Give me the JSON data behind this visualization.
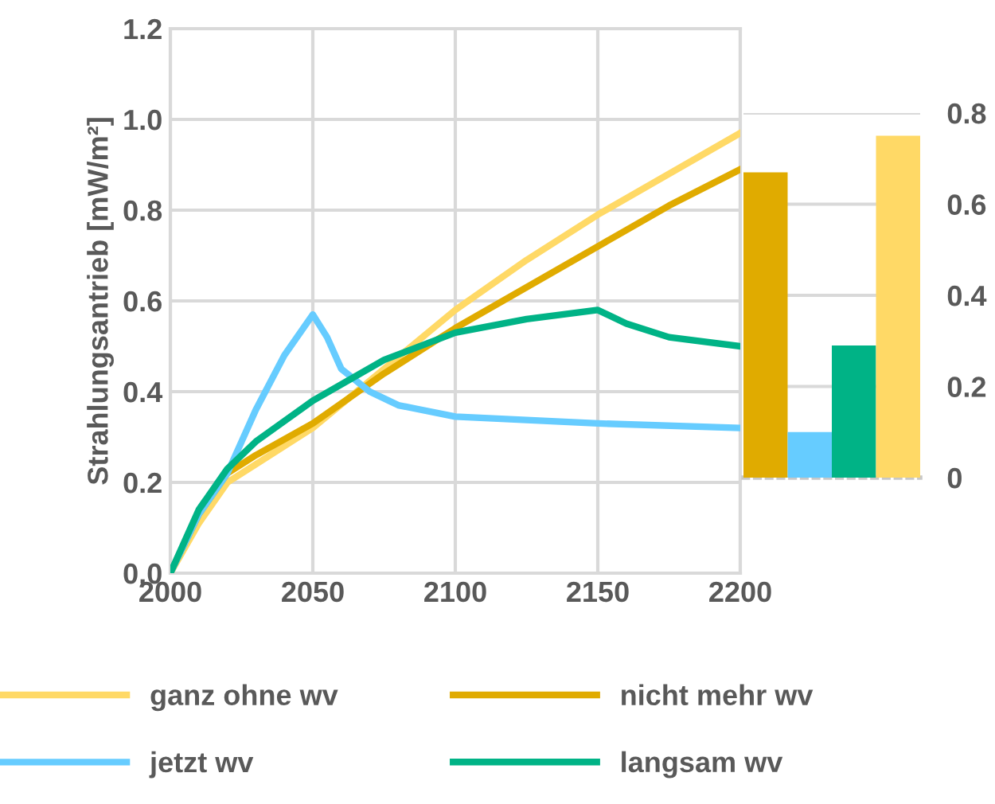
{
  "chart_data": [
    {
      "type": "line",
      "ylabel": "Strahlungsantrieb [mW/m²]",
      "xlim": [
        2000,
        2200
      ],
      "xticks": [
        2000,
        2050,
        2100,
        2150,
        2200
      ],
      "ylim": [
        0,
        1.2
      ],
      "yticks": [
        {
          "value": 0,
          "label": "0.0"
        },
        {
          "value": 0.2,
          "label": "0.2"
        },
        {
          "value": 0.4,
          "label": "0.4"
        },
        {
          "value": 0.6,
          "label": "0.6"
        },
        {
          "value": 0.8,
          "label": "0.8"
        },
        {
          "value": 1.0,
          "label": "1.0"
        },
        {
          "value": 1.2,
          "label": "1.2"
        }
      ],
      "grid": true,
      "legend": "bottom",
      "marker": "none",
      "line_style": "solid",
      "series": [
        {
          "name": "ganz ohne wv",
          "color": "#ffd966",
          "x": [
            2000,
            2010,
            2020,
            2030,
            2050,
            2075,
            2100,
            2125,
            2150,
            2175,
            2200
          ],
          "values": [
            0,
            0.11,
            0.2,
            0.24,
            0.32,
            0.45,
            0.58,
            0.69,
            0.79,
            0.88,
            0.97
          ]
        },
        {
          "name": "nicht mehr wv",
          "color": "#e0ab00",
          "x": [
            2000,
            2010,
            2020,
            2030,
            2050,
            2075,
            2100,
            2125,
            2150,
            2175,
            2200
          ],
          "values": [
            0,
            0.13,
            0.22,
            0.26,
            0.33,
            0.44,
            0.54,
            0.63,
            0.72,
            0.81,
            0.89
          ]
        },
        {
          "name": "jetzt wv",
          "color": "#66ccff",
          "x": [
            2000,
            2010,
            2020,
            2030,
            2040,
            2050,
            2055,
            2060,
            2070,
            2080,
            2100,
            2150,
            2200
          ],
          "values": [
            0,
            0.13,
            0.22,
            0.36,
            0.48,
            0.57,
            0.52,
            0.45,
            0.4,
            0.37,
            0.345,
            0.33,
            0.32
          ]
        },
        {
          "name": "langsam wv",
          "color": "#00b386",
          "x": [
            2000,
            2010,
            2020,
            2030,
            2050,
            2075,
            2100,
            2125,
            2150,
            2160,
            2175,
            2200
          ],
          "values": [
            0,
            0.14,
            0.23,
            0.29,
            0.38,
            0.47,
            0.53,
            0.56,
            0.58,
            0.55,
            0.52,
            0.5
          ]
        }
      ]
    },
    {
      "type": "bar",
      "categories": [
        null,
        null,
        null,
        null
      ],
      "values": [
        0.67,
        0.1,
        0.29,
        0.75
      ],
      "colors": [
        "#e0ab00",
        "#66ccff",
        "#00b386",
        "#ffd966"
      ],
      "ylim": [
        0,
        0.8
      ],
      "yticks": [
        0,
        0.2,
        0.4,
        0.6,
        0.8
      ],
      "grid": "y",
      "tick_labels": "y"
    }
  ]
}
